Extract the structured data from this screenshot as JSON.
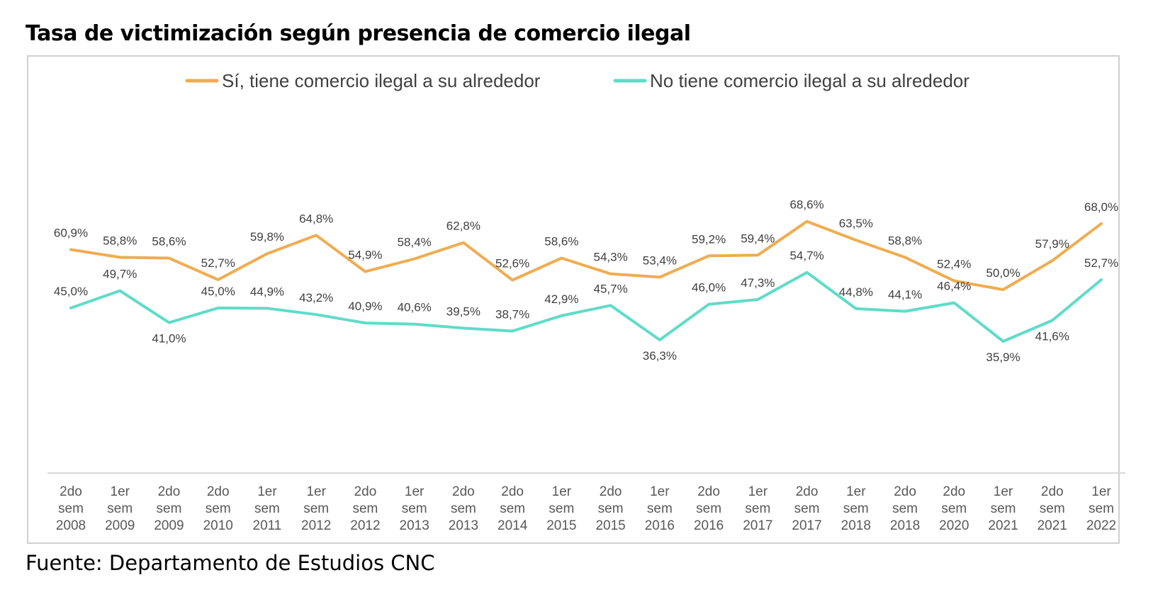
{
  "title": "Tasa de victimización según presencia de comercio ilegal",
  "source": "Fuente: Departamento de Estudios CNC",
  "colors": {
    "series1": "#F0AC50",
    "series2": "#5FDCC8",
    "axis": "#d9d9d9",
    "frame": "#d0d0d0"
  },
  "chart_data": {
    "type": "line",
    "title": "Tasa de victimización según presencia de comercio ilegal",
    "xlabel": "",
    "ylabel": "",
    "ylim": [
      0,
      80
    ],
    "grid": false,
    "legend_position": "top",
    "categories": [
      [
        "2do",
        "sem",
        "2008"
      ],
      [
        "1er",
        "sem",
        "2009"
      ],
      [
        "2do",
        "sem",
        "2009"
      ],
      [
        "2do",
        "sem",
        "2010"
      ],
      [
        "1er",
        "sem",
        "2011"
      ],
      [
        "1er",
        "sem",
        "2012"
      ],
      [
        "2do",
        "sem",
        "2012"
      ],
      [
        "1er",
        "sem",
        "2013"
      ],
      [
        "2do",
        "sem",
        "2013"
      ],
      [
        "2do",
        "sem",
        "2014"
      ],
      [
        "1er",
        "sem",
        "2015"
      ],
      [
        "2do",
        "sem",
        "2015"
      ],
      [
        "1er",
        "sem",
        "2016"
      ],
      [
        "2do",
        "sem",
        "2016"
      ],
      [
        "1er",
        "sem",
        "2017"
      ],
      [
        "2do",
        "sem",
        "2017"
      ],
      [
        "1er",
        "sem",
        "2018"
      ],
      [
        "2do",
        "sem",
        "2018"
      ],
      [
        "2do",
        "sem",
        "2020"
      ],
      [
        "1er",
        "sem",
        "2021"
      ],
      [
        "2do",
        "sem",
        "2021"
      ],
      [
        "1er",
        "sem",
        "2022"
      ]
    ],
    "series": [
      {
        "name": "Sí, tiene comercio ilegal a su alrededor",
        "color": "#F0AC50",
        "values": [
          60.9,
          58.8,
          58.6,
          52.7,
          59.8,
          64.8,
          54.9,
          58.4,
          62.8,
          52.6,
          58.6,
          54.3,
          53.4,
          59.2,
          59.4,
          68.6,
          63.5,
          58.8,
          52.4,
          50.0,
          57.9,
          68.0
        ],
        "labels": [
          "60,9%",
          "58,8%",
          "58,6%",
          "52,7%",
          "59,8%",
          "64,8%",
          "54,9%",
          "58,4%",
          "62,8%",
          "52,6%",
          "58,6%",
          "54,3%",
          "53,4%",
          "59,2%",
          "59,4%",
          "68,6%",
          "63,5%",
          "58,8%",
          "52,4%",
          "50,0%",
          "57,9%",
          "68,0%"
        ]
      },
      {
        "name": "No tiene comercio ilegal a su alrededor",
        "color": "#5FDCC8",
        "values": [
          45.0,
          49.7,
          41.0,
          45.0,
          44.9,
          43.2,
          40.9,
          40.6,
          39.5,
          38.7,
          42.9,
          45.7,
          36.3,
          46.0,
          47.3,
          54.7,
          44.8,
          44.1,
          46.4,
          35.9,
          41.6,
          52.7
        ],
        "labels": [
          "45,0%",
          "49,7%",
          "41,0%",
          "45,0%",
          "44,9%",
          "43,2%",
          "40,9%",
          "40,6%",
          "39,5%",
          "38,7%",
          "42,9%",
          "45,7%",
          "36,3%",
          "46,0%",
          "47,3%",
          "54,7%",
          "44,8%",
          "44,1%",
          "46,4%",
          "35,9%",
          "41,6%",
          "52,7%"
        ]
      }
    ]
  }
}
